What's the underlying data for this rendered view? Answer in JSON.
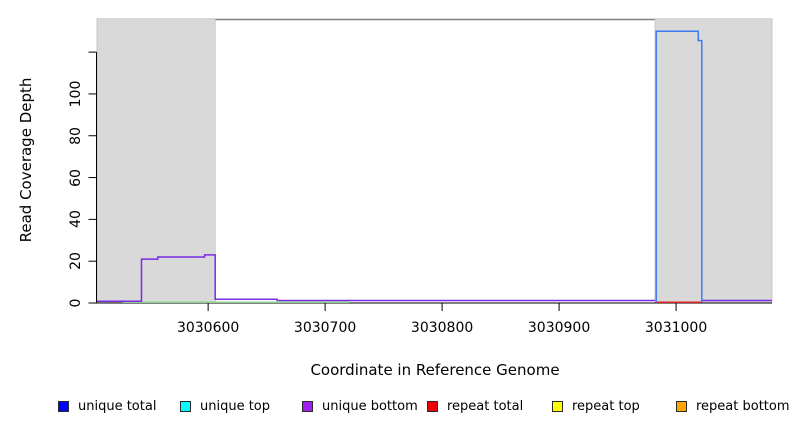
{
  "chart_data": {
    "type": "line",
    "subtype": "step-coverage-plot",
    "title": "",
    "xlabel": "Coordinate in Reference Genome",
    "ylabel": "Read Coverage Depth",
    "xlim": [
      3030505,
      3031082
    ],
    "ylim": [
      0,
      135.6
    ],
    "grid": false,
    "x_ticks": {
      "values": [
        3030600,
        3030700,
        3030800,
        3030900,
        3031000
      ],
      "labels": [
        "3030600",
        "3030700",
        "3030800",
        "3030900",
        "3031000"
      ]
    },
    "y_ticks": {
      "values": [
        0,
        20,
        40,
        60,
        80,
        100,
        120
      ],
      "labels": [
        "0",
        "20",
        "40",
        "60",
        "80",
        "100",
        ""
      ]
    },
    "top_border_color": "#808080",
    "axis_color": "#000000",
    "shaded_regions": [
      {
        "name": "left-gray-region",
        "x0": 3030505,
        "x1": 3030606,
        "color": "#d9d9d9",
        "edge": "#bfbfbf"
      },
      {
        "name": "right-gray-region",
        "x0": 3030982,
        "x1": 3031082,
        "color": "#d9d9d9",
        "edge": "#bfbfbf"
      }
    ],
    "series": [
      {
        "name": "unique top",
        "color": "#8fce8f",
        "segments": [
          [
            [
              3030527,
              0.35
            ],
            [
              3030721,
              0.35
            ]
          ]
        ]
      },
      {
        "name": "repeat total",
        "color": "#e02020",
        "segments": [
          [
            [
              3030983,
              0.35
            ],
            [
              3031022,
              0.35
            ]
          ]
        ]
      },
      {
        "name": "unique bottom",
        "color": "#7a2be8",
        "segments": [
          [
            [
              3030505,
              0.8
            ],
            [
              3030543,
              0.8
            ],
            [
              3030543,
              21
            ],
            [
              3030557,
              21
            ],
            [
              3030557,
              22
            ],
            [
              3030597,
              22
            ],
            [
              3030597,
              23
            ],
            [
              3030606,
              23
            ],
            [
              3030606,
              1.8
            ],
            [
              3030659,
              1.8
            ],
            [
              3030659,
              1.2
            ],
            [
              3030982,
              1.2
            ]
          ],
          [
            [
              3031022,
              1.2
            ],
            [
              3031082,
              1.2
            ]
          ]
        ]
      },
      {
        "name": "unique total",
        "color": "#3e7bf2",
        "segments": [
          [
            [
              3030983,
              0.35
            ],
            [
              3030983,
              130
            ],
            [
              3031019,
              130
            ],
            [
              3031019,
              125.5
            ],
            [
              3031022,
              125.5
            ],
            [
              3031022,
              0.35
            ]
          ]
        ]
      }
    ],
    "legend_position": "bottom"
  },
  "legend": {
    "items": [
      {
        "label": "unique total",
        "color": "#0000ff"
      },
      {
        "label": "unique top",
        "color": "#00ffff"
      },
      {
        "label": "unique bottom",
        "color": "#a020f0"
      },
      {
        "label": "repeat total",
        "color": "#ee0000"
      },
      {
        "label": "repeat top",
        "color": "#ffff00"
      },
      {
        "label": "repeat bottom",
        "color": "#ffa500"
      }
    ]
  }
}
